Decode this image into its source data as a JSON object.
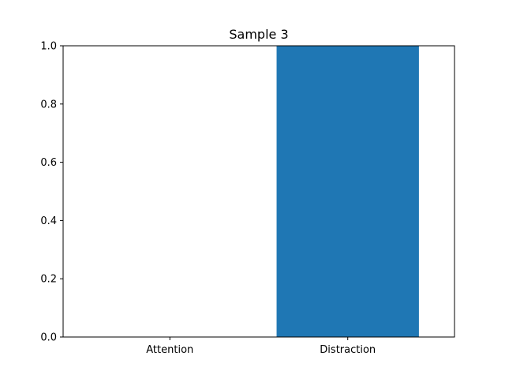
{
  "chart_data": {
    "type": "bar",
    "title": "Sample 3",
    "xlabel": "",
    "ylabel": "",
    "categories": [
      "Attention",
      "Distraction"
    ],
    "values": [
      0,
      1.0
    ],
    "ylim": [
      0,
      1.0
    ],
    "yticks": [
      "0.0",
      "0.2",
      "0.4",
      "0.6",
      "0.8",
      "1.0"
    ],
    "grid": false,
    "bar_color": "#1f77b4"
  }
}
